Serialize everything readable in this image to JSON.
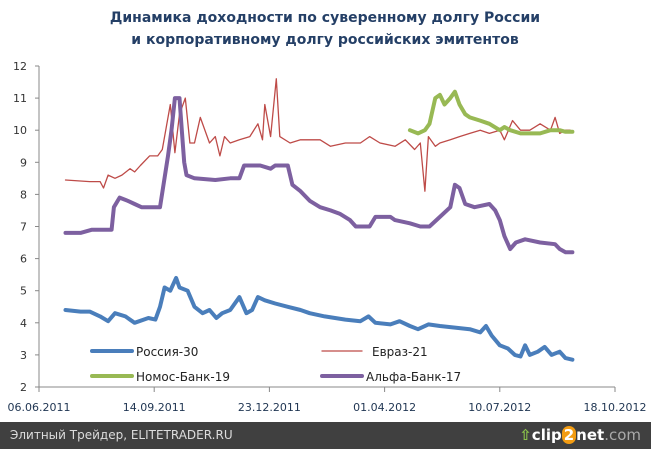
{
  "chart_data": {
    "type": "line",
    "title": [
      "Динамика доходности по суверенному долгу России",
      "и корпоративному долгу российских эмитентов"
    ],
    "xlabel": "",
    "ylabel": "",
    "x_unit": "days since 06.06.2011",
    "xlim": [
      0,
      500
    ],
    "ylim": [
      2,
      12
    ],
    "yticks": [
      2,
      3,
      4,
      5,
      6,
      7,
      8,
      9,
      10,
      11,
      12
    ],
    "xticks": [
      {
        "day": 0,
        "label": "06.06.2011"
      },
      {
        "day": 100,
        "label": "14.09.2011"
      },
      {
        "day": 200,
        "label": "23.12.2011"
      },
      {
        "day": 300,
        "label": "01.04.2012"
      },
      {
        "day": 400,
        "label": "10.07.2012"
      },
      {
        "day": 500,
        "label": "18.10.2012"
      }
    ],
    "grid": false,
    "legend_placement": "bottom-left inside",
    "series": [
      {
        "name": "Россия-30",
        "color": "#4a7ebb",
        "width": 4,
        "points": [
          [
            23,
            4.4
          ],
          [
            36,
            4.35
          ],
          [
            44,
            4.35
          ],
          [
            53,
            4.2
          ],
          [
            60,
            4.05
          ],
          [
            66,
            4.3
          ],
          [
            75,
            4.2
          ],
          [
            83,
            4.0
          ],
          [
            95,
            4.15
          ],
          [
            101,
            4.1
          ],
          [
            105,
            4.5
          ],
          [
            109,
            5.1
          ],
          [
            114,
            5.0
          ],
          [
            119,
            5.4
          ],
          [
            122,
            5.1
          ],
          [
            129,
            5.0
          ],
          [
            135,
            4.5
          ],
          [
            142,
            4.3
          ],
          [
            148,
            4.4
          ],
          [
            154,
            4.15
          ],
          [
            159,
            4.3
          ],
          [
            166,
            4.4
          ],
          [
            172,
            4.7
          ],
          [
            174,
            4.8
          ],
          [
            180,
            4.3
          ],
          [
            185,
            4.4
          ],
          [
            190,
            4.8
          ],
          [
            196,
            4.7
          ],
          [
            205,
            4.6
          ],
          [
            216,
            4.5
          ],
          [
            227,
            4.4
          ],
          [
            235,
            4.3
          ],
          [
            248,
            4.2
          ],
          [
            266,
            4.1
          ],
          [
            279,
            4.05
          ],
          [
            286,
            4.2
          ],
          [
            292,
            4.0
          ],
          [
            305,
            3.95
          ],
          [
            313,
            4.05
          ],
          [
            322,
            3.9
          ],
          [
            329,
            3.8
          ],
          [
            338,
            3.95
          ],
          [
            348,
            3.9
          ],
          [
            361,
            3.85
          ],
          [
            374,
            3.8
          ],
          [
            383,
            3.7
          ],
          [
            388,
            3.9
          ],
          [
            393,
            3.6
          ],
          [
            400,
            3.3
          ],
          [
            407,
            3.2
          ],
          [
            413,
            3.0
          ],
          [
            418,
            2.95
          ],
          [
            422,
            3.3
          ],
          [
            426,
            3.0
          ],
          [
            433,
            3.1
          ],
          [
            439,
            3.25
          ],
          [
            445,
            3.0
          ],
          [
            452,
            3.1
          ],
          [
            457,
            2.9
          ],
          [
            463,
            2.85
          ]
        ]
      },
      {
        "name": "Евраз-21",
        "color": "#be4b48",
        "width": 1.3,
        "points": [
          [
            23,
            8.45
          ],
          [
            44,
            8.4
          ],
          [
            53,
            8.4
          ],
          [
            56,
            8.2
          ],
          [
            60,
            8.6
          ],
          [
            66,
            8.5
          ],
          [
            72,
            8.6
          ],
          [
            79,
            8.8
          ],
          [
            83,
            8.7
          ],
          [
            88,
            8.9
          ],
          [
            96,
            9.2
          ],
          [
            103,
            9.2
          ],
          [
            107,
            9.4
          ],
          [
            114,
            10.8
          ],
          [
            118,
            9.3
          ],
          [
            122,
            10.5
          ],
          [
            127,
            11.0
          ],
          [
            131,
            9.6
          ],
          [
            135,
            9.6
          ],
          [
            140,
            10.4
          ],
          [
            148,
            9.6
          ],
          [
            153,
            9.8
          ],
          [
            157,
            9.2
          ],
          [
            161,
            9.8
          ],
          [
            166,
            9.6
          ],
          [
            174,
            9.7
          ],
          [
            183,
            9.8
          ],
          [
            190,
            10.2
          ],
          [
            194,
            9.7
          ],
          [
            196,
            10.8
          ],
          [
            201,
            9.8
          ],
          [
            206,
            11.6
          ],
          [
            209,
            9.8
          ],
          [
            218,
            9.6
          ],
          [
            227,
            9.7
          ],
          [
            235,
            9.7
          ],
          [
            244,
            9.7
          ],
          [
            253,
            9.5
          ],
          [
            266,
            9.6
          ],
          [
            279,
            9.6
          ],
          [
            287,
            9.8
          ],
          [
            296,
            9.6
          ],
          [
            309,
            9.5
          ],
          [
            318,
            9.7
          ],
          [
            326,
            9.4
          ],
          [
            331,
            9.6
          ],
          [
            335,
            8.1
          ],
          [
            338,
            9.8
          ],
          [
            344,
            9.5
          ],
          [
            348,
            9.6
          ],
          [
            357,
            9.7
          ],
          [
            365,
            9.8
          ],
          [
            374,
            9.9
          ],
          [
            383,
            10.0
          ],
          [
            391,
            9.9
          ],
          [
            400,
            10.0
          ],
          [
            404,
            9.7
          ],
          [
            411,
            10.3
          ],
          [
            418,
            10.0
          ],
          [
            426,
            10.0
          ],
          [
            435,
            10.2
          ],
          [
            444,
            10.0
          ],
          [
            448,
            10.4
          ],
          [
            452,
            9.9
          ],
          [
            457,
            10.0
          ],
          [
            461,
            10.0
          ]
        ]
      },
      {
        "name": "Номос-Банк-19",
        "color": "#98b954",
        "width": 4,
        "points": [
          [
            322,
            10.0
          ],
          [
            329,
            9.9
          ],
          [
            335,
            10.0
          ],
          [
            339,
            10.2
          ],
          [
            344,
            11.0
          ],
          [
            348,
            11.1
          ],
          [
            352,
            10.8
          ],
          [
            357,
            11.0
          ],
          [
            361,
            11.2
          ],
          [
            365,
            10.8
          ],
          [
            370,
            10.5
          ],
          [
            374,
            10.4
          ],
          [
            383,
            10.3
          ],
          [
            391,
            10.2
          ],
          [
            400,
            10.0
          ],
          [
            404,
            10.1
          ],
          [
            409,
            10.0
          ],
          [
            418,
            9.9
          ],
          [
            426,
            9.9
          ],
          [
            435,
            9.9
          ],
          [
            444,
            10.0
          ],
          [
            452,
            10.0
          ],
          [
            457,
            9.95
          ],
          [
            463,
            9.95
          ]
        ]
      },
      {
        "name": "Альфа-Банк-17",
        "color": "#7d60a0",
        "width": 4,
        "points": [
          [
            23,
            6.8
          ],
          [
            36,
            6.8
          ],
          [
            46,
            6.9
          ],
          [
            63,
            6.9
          ],
          [
            65,
            7.6
          ],
          [
            70,
            7.9
          ],
          [
            77,
            7.8
          ],
          [
            83,
            7.7
          ],
          [
            89,
            7.6
          ],
          [
            105,
            7.6
          ],
          [
            112,
            9.2
          ],
          [
            115,
            10.0
          ],
          [
            118,
            11.0
          ],
          [
            122,
            11.0
          ],
          [
            124,
            10.0
          ],
          [
            126,
            9.0
          ],
          [
            128,
            8.6
          ],
          [
            135,
            8.5
          ],
          [
            153,
            8.45
          ],
          [
            166,
            8.5
          ],
          [
            174,
            8.5
          ],
          [
            178,
            8.9
          ],
          [
            192,
            8.9
          ],
          [
            201,
            8.8
          ],
          [
            205,
            8.9
          ],
          [
            216,
            8.9
          ],
          [
            220,
            8.3
          ],
          [
            227,
            8.1
          ],
          [
            235,
            7.8
          ],
          [
            244,
            7.6
          ],
          [
            253,
            7.5
          ],
          [
            261,
            7.4
          ],
          [
            270,
            7.2
          ],
          [
            275,
            7.0
          ],
          [
            287,
            7.0
          ],
          [
            292,
            7.3
          ],
          [
            305,
            7.3
          ],
          [
            309,
            7.2
          ],
          [
            322,
            7.1
          ],
          [
            331,
            7.0
          ],
          [
            339,
            7.0
          ],
          [
            348,
            7.3
          ],
          [
            357,
            7.6
          ],
          [
            361,
            8.3
          ],
          [
            365,
            8.2
          ],
          [
            370,
            7.7
          ],
          [
            378,
            7.6
          ],
          [
            391,
            7.7
          ],
          [
            396,
            7.5
          ],
          [
            400,
            7.2
          ],
          [
            404,
            6.7
          ],
          [
            409,
            6.3
          ],
          [
            414,
            6.5
          ],
          [
            422,
            6.6
          ],
          [
            435,
            6.5
          ],
          [
            448,
            6.45
          ],
          [
            452,
            6.3
          ],
          [
            457,
            6.2
          ],
          [
            463,
            6.2
          ]
        ]
      }
    ]
  },
  "footer": {
    "credit": "Элитный Трейдер, ELITETRADER.RU",
    "logo_main": "clip",
    "logo_two": "2",
    "logo_net": "net",
    "logo_domain": ".com"
  }
}
